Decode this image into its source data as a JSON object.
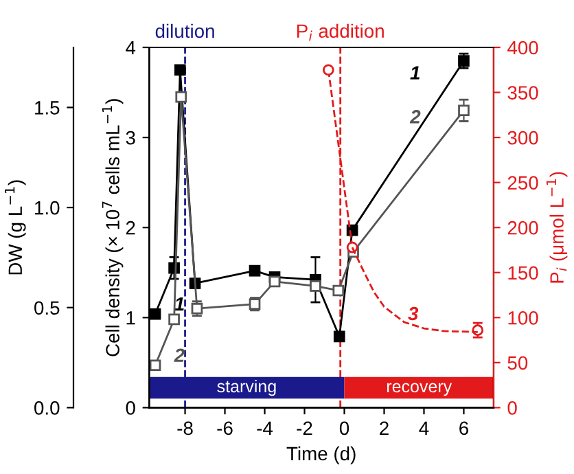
{
  "chart_data": {
    "type": "line",
    "xlabel": "Time (d)",
    "ylabel": "Cell density (× 10$^{7}$ cells mL$^{−1}$)",
    "y2label": "P$_{i}$ (μmol L$^{−1}$)",
    "y3label": "DW (g L$^{−1}$)",
    "xlim": [
      -9.8,
      7.5
    ],
    "xticks": [
      -8,
      -6,
      -4,
      -2,
      0,
      2,
      4,
      6
    ],
    "ylim": [
      0,
      4
    ],
    "yticks": [
      0,
      1,
      2,
      3,
      4
    ],
    "y2lim": [
      0,
      400
    ],
    "y2ticks": [
      0,
      50,
      100,
      150,
      200,
      250,
      300,
      350,
      400
    ],
    "y3lim": [
      0,
      1.8
    ],
    "y3ticks": [
      {
        "value": 0,
        "label": "0.0"
      },
      {
        "value": 0.5,
        "label": "0.5"
      },
      {
        "value": 1.0,
        "label": "1.0"
      },
      {
        "value": 1.5,
        "label": "1.5"
      }
    ],
    "grid": false,
    "series": [
      {
        "name": "1",
        "color": "#000000",
        "marker": "square",
        "line_style": "solid",
        "x": [
          -9.5,
          -8.55,
          -8.25,
          -7.5,
          -4.5,
          -3.5,
          -1.45,
          -0.25,
          0.4,
          6
        ],
        "values": [
          1.04,
          1.55,
          3.75,
          1.38,
          1.52,
          1.45,
          1.42,
          0.79,
          1.97,
          3.85
        ],
        "errors": [
          null,
          0.12,
          null,
          0.05,
          0.05,
          0.05,
          0.25,
          null,
          null,
          0.08
        ]
      },
      {
        "name": "2",
        "color": "#555555",
        "marker": "square",
        "line_style": "solid",
        "x": [
          -9.5,
          -8.55,
          -8.2,
          -7.4,
          -4.5,
          -3.5,
          -1.45,
          -0.3,
          0.45,
          6
        ],
        "values": [
          0.47,
          0.98,
          3.45,
          1.1,
          1.15,
          1.4,
          1.35,
          1.3,
          1.73,
          3.3
        ],
        "errors": [
          null,
          null,
          null,
          0.08,
          0.07,
          null,
          0.05,
          null,
          null,
          0.12
        ]
      },
      {
        "color": "#e31a1c",
        "axis": "y2",
        "marker": "circle",
        "line_style": "dashed",
        "x": [
          -0.8,
          0.4
        ],
        "values": [
          375,
          178
        ]
      },
      {
        "color": "#e31a1c",
        "axis": "y2",
        "marker": "circle",
        "line_style": "none",
        "x": [
          6.7
        ],
        "values": [
          86
        ],
        "errors": [
          8
        ]
      },
      {
        "name": "3",
        "color": "#e31a1c",
        "axis": "y2",
        "marker": "none",
        "line_style": "dashed",
        "x": [
          0.4,
          1,
          1.5,
          2,
          3,
          4,
          5,
          6.7
        ],
        "values": [
          178,
          150,
          128,
          112,
          95,
          88,
          85,
          84
        ]
      }
    ],
    "ref_lines": [
      {
        "axis": "x",
        "value": -8,
        "label": "dilution",
        "color": "#1a1a8c",
        "line_style": "dashed"
      },
      {
        "axis": "x",
        "value": -0.2,
        "label": "P$_{i}$ addition",
        "color": "#e31a1c",
        "line_style": "dashed"
      }
    ],
    "bands": [
      {
        "axis": "x",
        "from": -9.8,
        "to": 0,
        "label": "starving",
        "color": "#1a1a8c"
      },
      {
        "axis": "x",
        "from": 0,
        "to": 7.5,
        "label": "recovery",
        "color": "#e31a1c"
      }
    ]
  }
}
